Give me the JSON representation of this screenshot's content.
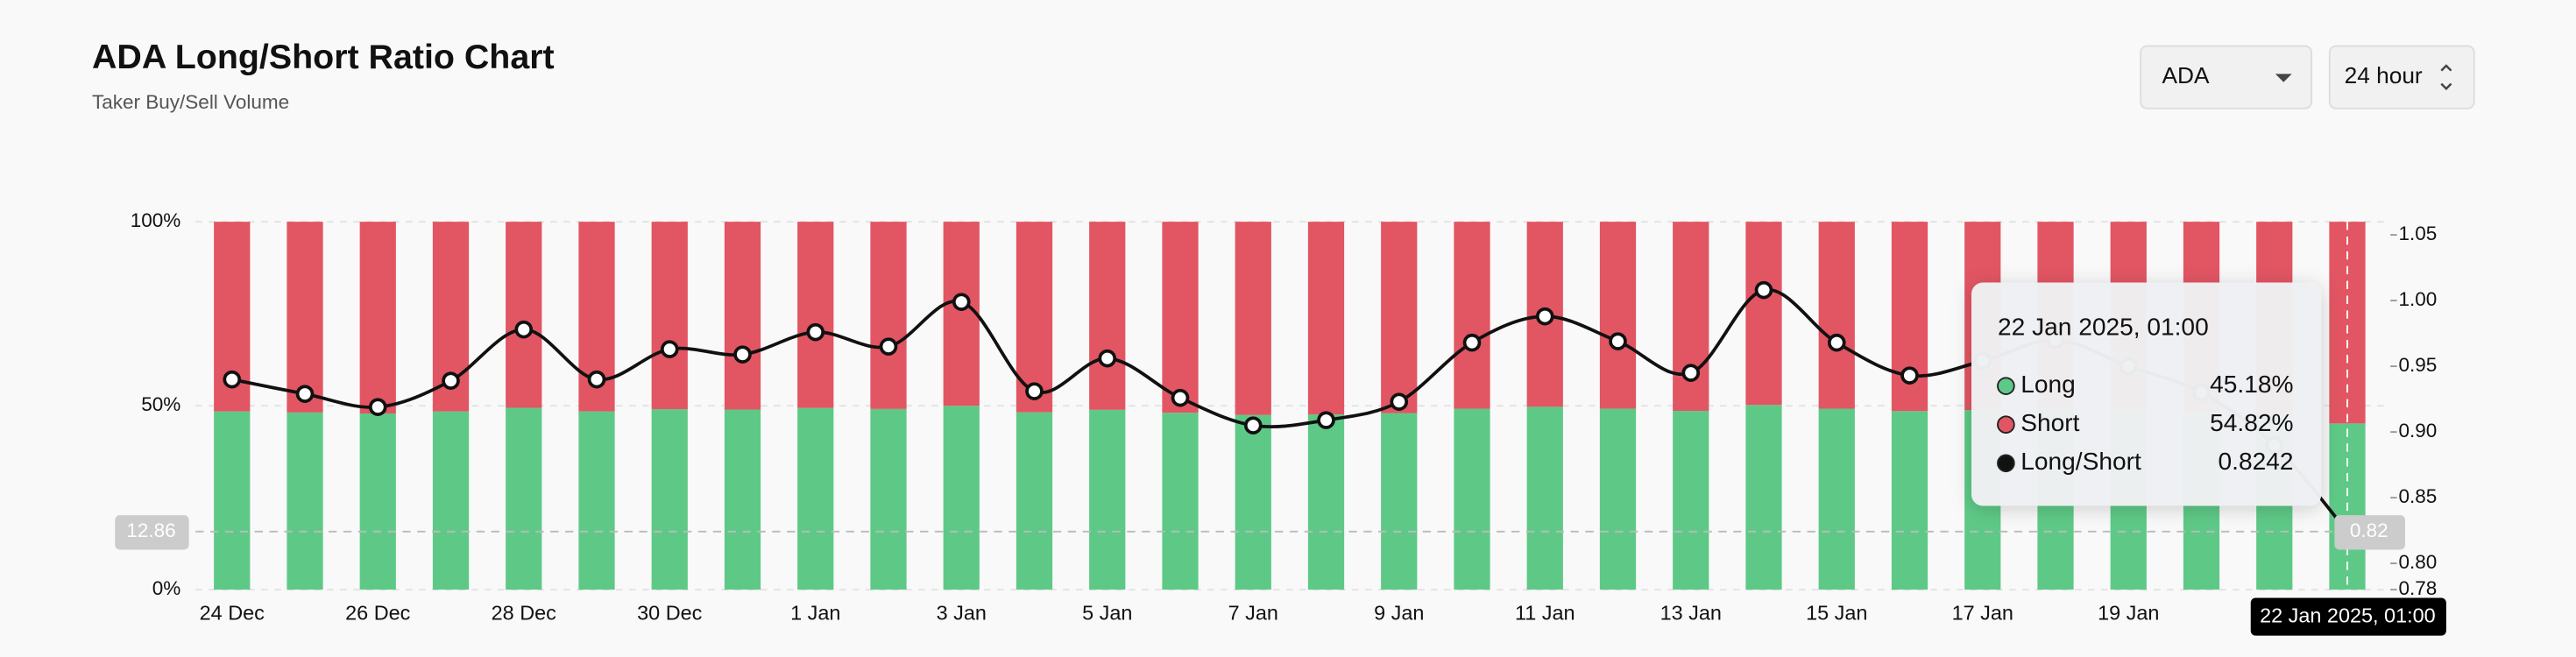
{
  "header": {
    "title": "ADA Long/Short Ratio Chart",
    "subtitle": "Taker Buy/Sell Volume"
  },
  "controls": {
    "symbol": "ADA",
    "interval": "24 hour"
  },
  "chart_data": {
    "type": "bar",
    "stacked": true,
    "categories": [
      "24 Dec",
      null,
      "26 Dec",
      null,
      "28 Dec",
      null,
      "30 Dec",
      null,
      "1 Jan",
      null,
      "3 Jan",
      null,
      "5 Jan",
      null,
      "7 Jan",
      null,
      "9 Jan",
      null,
      "11 Jan",
      null,
      "13 Jan",
      null,
      "15 Jan",
      null,
      "17 Jan",
      null,
      "19 Jan",
      null,
      null,
      null
    ],
    "series": [
      {
        "name": "Long",
        "color": "#5ec987",
        "values": [
          48.45,
          48.16,
          47.89,
          48.43,
          49.44,
          48.45,
          49.06,
          48.95,
          49.39,
          49.11,
          49.97,
          48.21,
          48.88,
          48.08,
          47.51,
          47.62,
          48.0,
          49.19,
          49.7,
          49.21,
          48.59,
          50.2,
          49.19,
          48.53,
          48.82,
          49.24,
          48.72,
          48.19,
          47.09,
          45.18
        ],
        "value_labels": [
          null,
          null,
          null,
          null,
          null,
          null,
          null,
          null,
          null,
          null,
          null,
          null,
          null,
          null,
          null,
          null,
          null,
          null,
          null,
          null,
          null,
          null,
          null,
          null,
          null,
          null,
          null,
          null,
          null,
          "45.18%"
        ]
      },
      {
        "name": "Short",
        "color": "#e25563",
        "values": [
          51.55,
          51.84,
          52.11,
          51.57,
          50.56,
          51.55,
          50.94,
          51.05,
          50.61,
          50.89,
          50.03,
          51.79,
          51.12,
          51.92,
          52.49,
          52.38,
          52.0,
          50.81,
          50.3,
          50.79,
          51.41,
          49.8,
          50.81,
          51.47,
          51.18,
          50.76,
          51.28,
          51.81,
          52.91,
          54.82
        ],
        "value_labels": [
          null,
          null,
          null,
          null,
          null,
          null,
          null,
          null,
          null,
          null,
          null,
          null,
          null,
          null,
          null,
          null,
          null,
          null,
          null,
          null,
          null,
          null,
          null,
          null,
          null,
          null,
          null,
          null,
          null,
          "54.82%"
        ]
      },
      {
        "name": "Long/Short",
        "color": "#111111",
        "type": "line",
        "axis": "y2",
        "values": [
          0.94,
          0.929,
          0.919,
          0.939,
          0.978,
          0.94,
          0.963,
          0.959,
          0.976,
          0.965,
          0.999,
          0.931,
          0.956,
          0.926,
          0.905,
          0.909,
          0.923,
          0.968,
          0.988,
          0.969,
          0.945,
          1.008,
          0.968,
          0.943,
          0.954,
          0.97,
          0.95,
          0.93,
          0.89,
          0.8242
        ]
      }
    ],
    "ylim": [
      0,
      100
    ],
    "yticks": [
      {
        "value": 0,
        "label": "0%"
      },
      {
        "value": 50,
        "label": "50%"
      },
      {
        "value": 100,
        "label": "100%"
      }
    ],
    "y2lim": [
      0.78,
      1.06
    ],
    "y2ticks": [
      0.78,
      {
        "value": 0.8,
        "label": "0.80"
      },
      0.85,
      {
        "value": 0.9,
        "label": "0.90"
      },
      0.95,
      {
        "value": 1,
        "label": "1.00"
      },
      1.05
    ],
    "grid": true,
    "crosshair": {
      "index": 29,
      "y_label": "12.86",
      "y2_label": "0.82",
      "x_label": "22 Jan 2025, 01:00"
    }
  }
}
